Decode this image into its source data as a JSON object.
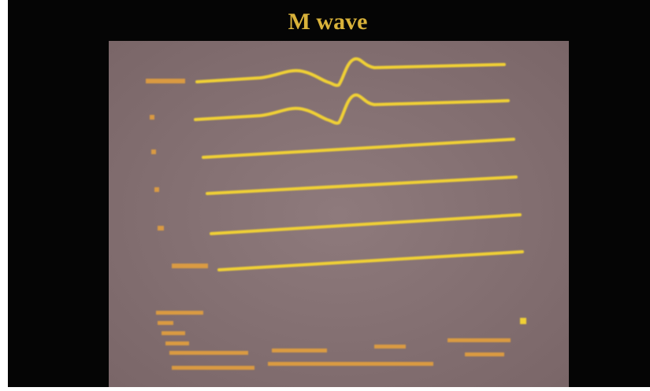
{
  "header": {
    "title": "M wave"
  }
}
